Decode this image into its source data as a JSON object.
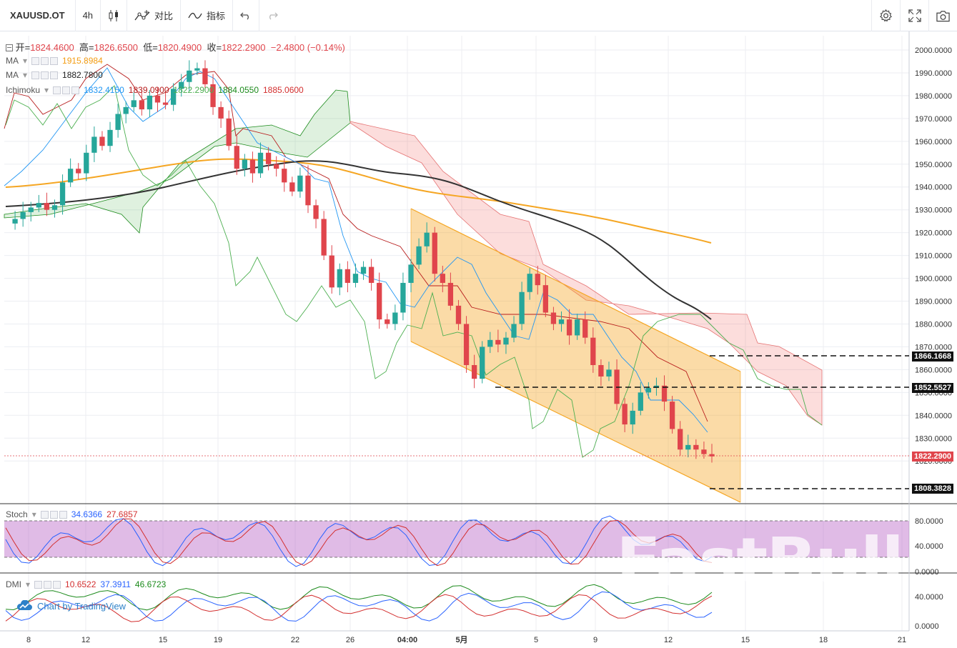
{
  "toolbar": {
    "symbol": "XAUUSD.OT",
    "interval": "4h",
    "compare_label": "对比",
    "indicators_label": "指标"
  },
  "ohlc": {
    "open_label": "开=",
    "open": "1824.4600",
    "high_label": "高=",
    "high": "1826.6500",
    "low_label": "低=",
    "low": "1820.4900",
    "close_label": "收=",
    "close": "1822.2900",
    "change": "−2.4800 (−0.14%)"
  },
  "legends": {
    "ma1": {
      "name": "MA",
      "value": "1915.8984",
      "color": "#f39c12"
    },
    "ma2": {
      "name": "MA",
      "value": "1882.7800",
      "color": "#222222"
    },
    "ichimoku": {
      "name": "Ichimoku",
      "values": [
        "1832.4150",
        "1839.0900",
        "1822.2900",
        "1884.0550",
        "1885.0600"
      ],
      "colors": [
        "#2196f3",
        "#b71c1c",
        "#4caf50",
        "#1b8a1b",
        "#d32f2f"
      ]
    },
    "stoch": {
      "name": "Stoch",
      "values": [
        "34.6366",
        "27.6857"
      ],
      "colors": [
        "#2962ff",
        "#d32f2f"
      ]
    },
    "dmi": {
      "name": "DMI",
      "values": [
        "10.6522",
        "37.3911",
        "46.6723"
      ],
      "colors": [
        "#d32f2f",
        "#2962ff",
        "#1b8a1b"
      ]
    }
  },
  "price_axis": [
    "2000.0000",
    "1990.0000",
    "1980.0000",
    "1970.0000",
    "1960.0000",
    "1950.0000",
    "1940.0000",
    "1930.0000",
    "1920.0000",
    "1910.0000",
    "1900.0000",
    "1890.0000",
    "1880.0000",
    "1870.0000",
    "1860.0000",
    "1850.0000",
    "1840.0000",
    "1830.0000",
    "1820.0000"
  ],
  "stoch_axis": [
    "80.0000",
    "40.0000",
    "0.0000"
  ],
  "dmi_axis": [
    "40.0000",
    "0.0000"
  ],
  "time_axis": [
    "8",
    "12",
    "15",
    "19",
    "22",
    "26",
    "04:00",
    "5月",
    "5",
    "9",
    "12",
    "15",
    "18",
    "21"
  ],
  "price_tags": {
    "level1": "1866.1668",
    "level2": "1852.5527",
    "current": "1822.2900",
    "level3": "1808.3828"
  },
  "branding": {
    "tv_label": "Chart by TradingView",
    "watermark": "FastBull"
  },
  "colors": {
    "up": "#26a69a",
    "down": "#e0454c",
    "accent": "#f5a623"
  }
}
